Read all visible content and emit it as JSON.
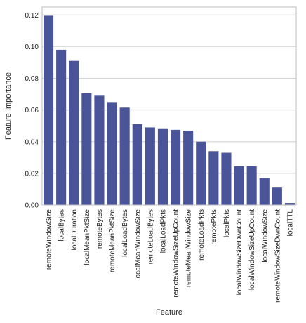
{
  "chart_data": {
    "type": "bar",
    "xlabel": "Feature",
    "ylabel": "Feature Importance",
    "ylim": [
      0,
      0.125
    ],
    "yticks": [
      "0.00",
      "0.02",
      "0.04",
      "0.06",
      "0.08",
      "0.10",
      "0.12"
    ],
    "ytick_values": [
      0,
      0.02,
      0.04,
      0.06,
      0.08,
      0.1,
      0.12
    ],
    "grid": true,
    "bar_color": "#4a5499",
    "categories": [
      "remoteWindowSize",
      "localBytes",
      "localDuration",
      "localMeanPktSize",
      "remoteBytes",
      "remoteMeanPktSize",
      "localLoadBytes",
      "localMeanWindowSize",
      "remoteLoadBytes",
      "localLoadPkts",
      "remoteWindowSizeUpCount",
      "remoteMeanWindowSize",
      "remoteLoadPkts",
      "remotePkts",
      "localPkts",
      "localWindowSizeDwnCount",
      "localWindowSizeUpCount",
      "localWindowSize",
      "remoteWindowSizeDwnCount",
      "localTTL"
    ],
    "values": [
      0.1195,
      0.098,
      0.091,
      0.0705,
      0.069,
      0.065,
      0.0615,
      0.051,
      0.049,
      0.048,
      0.0475,
      0.047,
      0.04,
      0.034,
      0.033,
      0.0245,
      0.0245,
      0.017,
      0.011,
      0.0013
    ]
  }
}
